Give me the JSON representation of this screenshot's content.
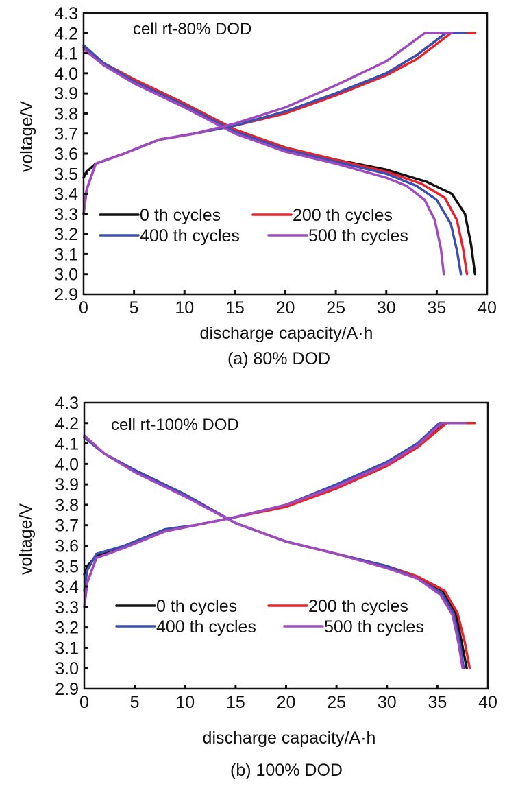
{
  "colors": {
    "0 th cycles": "#111111",
    "200 th cycles": "#e8232b",
    "400 th cycles": "#3a4fb0",
    "500 th cycles": "#a04ac0"
  },
  "chart_data": [
    {
      "type": "line",
      "panel": "a",
      "caption": "(a) 80% DOD",
      "annotation": "cell rt-80% DOD",
      "xlabel": "discharge capacity/A·h",
      "ylabel": "voltage/V",
      "xlim": [
        0,
        40
      ],
      "ylim": [
        2.9,
        4.3
      ],
      "xticks": [
        0,
        5,
        10,
        15,
        20,
        25,
        30,
        35,
        40
      ],
      "xtick_labels": [
        "0",
        "5",
        "10",
        "15",
        "20",
        "25",
        "30",
        "35",
        "40"
      ],
      "yticks": [
        2.9,
        3.0,
        3.1,
        3.2,
        3.3,
        3.4,
        3.5,
        3.6,
        3.7,
        3.8,
        3.9,
        4.0,
        4.1,
        4.2,
        4.3
      ],
      "ytick_labels": [
        "2.9",
        "3.0",
        "3.1",
        "3.2",
        "3.3",
        "3.4",
        "3.5",
        "3.6",
        "3.7",
        "3.8",
        "3.9",
        "4.0",
        "4.1",
        "4.2",
        "4.3"
      ],
      "grid": false,
      "legend": {
        "placement": "lower-left",
        "entries": [
          "0 th cycles",
          "200 th cycles",
          "400 th cycles",
          "500 th cycles"
        ]
      },
      "series": [
        {
          "name": "0 th cycles",
          "charge": {
            "x": [
              0,
              0.3,
              1.2,
              4,
              7.5,
              11,
              15,
              20,
              25,
              30,
              33,
              35.9,
              37.9
            ],
            "y": [
              3.48,
              3.51,
              3.55,
              3.6,
              3.67,
              3.7,
              3.74,
              3.81,
              3.9,
              4.0,
              4.09,
              4.2,
              4.2
            ]
          },
          "discharge": {
            "x": [
              0,
              2,
              5,
              10,
              15,
              20,
              25,
              30,
              34,
              36.5,
              37.8,
              38.4,
              38.8
            ],
            "y": [
              4.13,
              4.05,
              3.97,
              3.85,
              3.72,
              3.63,
              3.57,
              3.52,
              3.46,
              3.4,
              3.3,
              3.15,
              3.0
            ]
          }
        },
        {
          "name": "200 th cycles",
          "charge": {
            "x": [
              0,
              0.3,
              1.2,
              4,
              7.5,
              11,
              15,
              20,
              25,
              30,
              33,
              36.4,
              38.8
            ],
            "y": [
              3.3,
              3.42,
              3.55,
              3.6,
              3.67,
              3.7,
              3.74,
              3.8,
              3.89,
              3.99,
              4.07,
              4.2,
              4.2
            ]
          },
          "discharge": {
            "x": [
              0,
              2,
              5,
              10,
              15,
              20,
              25,
              30,
              33.5,
              35.8,
              37,
              37.6,
              38
            ],
            "y": [
              4.13,
              4.05,
              3.97,
              3.85,
              3.72,
              3.63,
              3.57,
              3.51,
              3.45,
              3.38,
              3.27,
              3.13,
              3.0
            ]
          }
        },
        {
          "name": "400 th cycles",
          "charge": {
            "x": [
              0,
              0.3,
              1.2,
              4,
              7.5,
              11,
              15,
              20,
              25,
              30,
              33,
              35.9,
              37.9
            ],
            "y": [
              3.3,
              3.42,
              3.55,
              3.6,
              3.67,
              3.7,
              3.74,
              3.81,
              3.9,
              4.0,
              4.09,
              4.2,
              4.2
            ]
          },
          "discharge": {
            "x": [
              0,
              2,
              5,
              10,
              15,
              20,
              25,
              30,
              33,
              35,
              36.4,
              37,
              37.4
            ],
            "y": [
              4.14,
              4.05,
              3.96,
              3.84,
              3.71,
              3.62,
              3.56,
              3.5,
              3.44,
              3.37,
              3.25,
              3.12,
              3.0
            ]
          }
        },
        {
          "name": "500 th cycles",
          "charge": {
            "x": [
              0,
              0.3,
              1.2,
              4,
              7.5,
              11,
              15,
              20,
              25,
              30,
              33.8,
              36.5
            ],
            "y": [
              3.3,
              3.42,
              3.55,
              3.6,
              3.67,
              3.7,
              3.75,
              3.83,
              3.94,
              4.06,
              4.2,
              4.2
            ]
          },
          "discharge": {
            "x": [
              0,
              2,
              5,
              10,
              15,
              20,
              25,
              30,
              32,
              33.8,
              34.8,
              35.4,
              35.7
            ],
            "y": [
              4.12,
              4.04,
              3.95,
              3.83,
              3.7,
              3.61,
              3.55,
              3.48,
              3.44,
              3.37,
              3.27,
              3.13,
              3.0
            ]
          }
        }
      ]
    },
    {
      "type": "line",
      "panel": "b",
      "caption": "(b) 100% DOD",
      "annotation": "cell rt-100% DOD",
      "xlabel": "discharge capacity/A·h",
      "ylabel": "voltage/V",
      "xlim": [
        0,
        40
      ],
      "ylim": [
        2.9,
        4.3
      ],
      "xticks": [
        0,
        5,
        10,
        15,
        20,
        25,
        30,
        35,
        40
      ],
      "xtick_labels": [
        "0",
        "5",
        "10",
        "15",
        "20",
        "25",
        "30",
        "35",
        "40"
      ],
      "yticks": [
        2.9,
        3.0,
        3.1,
        3.2,
        3.3,
        3.4,
        3.5,
        3.6,
        3.7,
        3.8,
        3.9,
        4.0,
        4.1,
        4.2,
        4.3
      ],
      "ytick_labels": [
        "2.9",
        "3.0",
        "3.1",
        "3.2",
        "3.3",
        "3.4",
        "3.5",
        "3.6",
        "3.7",
        "3.8",
        "3.9",
        "4.0",
        "4.1",
        "4.2",
        "4.3"
      ],
      "grid": false,
      "legend": {
        "placement": "lower-left",
        "entries": [
          "0 th cycles",
          "200 th cycles",
          "400 th cycles",
          "500 th cycles"
        ]
      },
      "series": [
        {
          "name": "0 th cycles",
          "charge": {
            "x": [
              0,
              0.3,
              1.2,
              4,
              8,
              11,
              15,
              20,
              25,
              30,
              33,
              35.5,
              38.6
            ],
            "y": [
              3.46,
              3.5,
              3.55,
              3.6,
              3.68,
              3.7,
              3.74,
              3.8,
              3.89,
              4.0,
              4.09,
              4.2,
              4.2
            ]
          },
          "discharge": {
            "x": [
              0,
              2,
              5,
              10,
              15,
              20,
              25,
              30,
              33,
              35.5,
              36.8,
              37.4,
              37.9
            ],
            "y": [
              4.13,
              4.05,
              3.97,
              3.85,
              3.71,
              3.62,
              3.56,
              3.5,
              3.45,
              3.38,
              3.27,
              3.13,
              3.0
            ]
          }
        },
        {
          "name": "200 th cycles",
          "charge": {
            "x": [
              0,
              0.3,
              1.2,
              4,
              8,
              11,
              15,
              20,
              25,
              30,
              33,
              35.9,
              38.7
            ],
            "y": [
              3.3,
              3.42,
              3.54,
              3.59,
              3.67,
              3.7,
              3.74,
              3.79,
              3.88,
              3.99,
              4.08,
              4.2,
              4.2
            ]
          },
          "discharge": {
            "x": [
              0,
              2,
              5,
              10,
              15,
              20,
              25,
              30,
              33,
              35.7,
              37,
              37.7,
              38.2
            ],
            "y": [
              4.13,
              4.05,
              3.97,
              3.85,
              3.71,
              3.62,
              3.56,
              3.5,
              3.45,
              3.38,
              3.27,
              3.13,
              3.0
            ]
          }
        },
        {
          "name": "400 th cycles",
          "charge": {
            "x": [
              0,
              0.3,
              1.2,
              4,
              8,
              11,
              15,
              20,
              25,
              30,
              33,
              35.2,
              37.8
            ],
            "y": [
              3.38,
              3.48,
              3.56,
              3.6,
              3.68,
              3.7,
              3.74,
              3.8,
              3.9,
              4.01,
              4.1,
              4.2,
              4.2
            ]
          },
          "discharge": {
            "x": [
              0,
              2,
              5,
              10,
              15,
              20,
              25,
              30,
              33,
              35.4,
              36.6,
              37.2,
              37.6
            ],
            "y": [
              4.13,
              4.05,
              3.97,
              3.85,
              3.71,
              3.62,
              3.56,
              3.5,
              3.44,
              3.37,
              3.27,
              3.13,
              3.0
            ]
          }
        },
        {
          "name": "500 th cycles",
          "charge": {
            "x": [
              0,
              0.3,
              1.2,
              4,
              8,
              11,
              15,
              20,
              25,
              30,
              33,
              35.4,
              37.8
            ],
            "y": [
              3.3,
              3.42,
              3.54,
              3.59,
              3.67,
              3.7,
              3.74,
              3.8,
              3.89,
              4.0,
              4.09,
              4.2,
              4.2
            ]
          },
          "discharge": {
            "x": [
              0,
              2,
              5,
              10,
              15,
              20,
              25,
              30,
              33,
              35.3,
              36.5,
              37.1,
              37.5
            ],
            "y": [
              4.14,
              4.05,
              3.96,
              3.84,
              3.71,
              3.62,
              3.56,
              3.49,
              3.44,
              3.36,
              3.26,
              3.12,
              3.0
            ]
          }
        }
      ]
    }
  ]
}
